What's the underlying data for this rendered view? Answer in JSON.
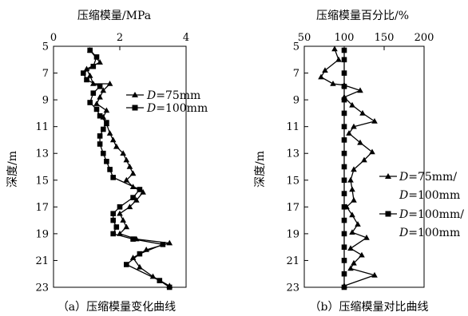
{
  "chart_data": [
    {
      "type": "line",
      "title": "",
      "xlabel": "压缩模量/MPa",
      "ylabel": "深度/m",
      "caption": "（a）压缩模量变化曲线",
      "xlim": [
        0,
        4
      ],
      "ylim": [
        5,
        23
      ],
      "y_inverted": true,
      "x_axis_position": "top",
      "xticks": [
        "0",
        "2",
        "4"
      ],
      "yticks": [
        "5",
        "7",
        "9",
        "11",
        "13",
        "15",
        "17",
        "19",
        "21",
        "23"
      ],
      "legend_position": "right",
      "series": [
        {
          "name": "D=75mm",
          "legend_prefix": "D",
          "legend_suffix": "=75mm",
          "marker": "triangle",
          "points": [
            [
              1.1,
              5.3
            ],
            [
              1.4,
              6.2
            ],
            [
              1.0,
              6.7
            ],
            [
              1.1,
              7.2
            ],
            [
              1.2,
              7.8
            ],
            [
              1.7,
              7.8
            ],
            [
              1.5,
              8.3
            ],
            [
              1.4,
              8.8
            ],
            [
              1.3,
              9.3
            ],
            [
              1.6,
              9.8
            ],
            [
              1.5,
              10.3
            ],
            [
              1.6,
              10.8
            ],
            [
              1.7,
              11.5
            ],
            [
              1.8,
              12.0
            ],
            [
              1.9,
              12.5
            ],
            [
              2.1,
              13.0
            ],
            [
              2.2,
              13.5
            ],
            [
              2.3,
              14.0
            ],
            [
              2.4,
              14.5
            ],
            [
              2.2,
              15.0
            ],
            [
              2.4,
              15.5
            ],
            [
              2.7,
              15.9
            ],
            [
              2.5,
              16.5
            ],
            [
              2.3,
              17.0
            ],
            [
              2.0,
              17.5
            ],
            [
              2.1,
              18.0
            ],
            [
              2.2,
              18.5
            ],
            [
              2.0,
              19.0
            ],
            [
              2.5,
              19.4
            ],
            [
              3.5,
              19.7
            ],
            [
              2.8,
              20.2
            ],
            [
              2.4,
              20.8
            ],
            [
              2.6,
              21.5
            ],
            [
              3.0,
              22.2
            ],
            [
              3.5,
              22.9
            ]
          ]
        },
        {
          "name": "D=100mm",
          "legend_prefix": "D",
          "legend_suffix": "=100mm",
          "marker": "square",
          "points": [
            [
              1.1,
              5.3
            ],
            [
              1.3,
              5.8
            ],
            [
              1.2,
              6.5
            ],
            [
              0.9,
              7.0
            ],
            [
              1.0,
              7.5
            ],
            [
              1.4,
              8.0
            ],
            [
              1.2,
              8.5
            ],
            [
              1.1,
              9.2
            ],
            [
              1.3,
              9.7
            ],
            [
              1.4,
              10.2
            ],
            [
              1.6,
              10.7
            ],
            [
              1.5,
              11.2
            ],
            [
              1.4,
              11.7
            ],
            [
              1.4,
              12.3
            ],
            [
              1.5,
              13.0
            ],
            [
              1.6,
              13.6
            ],
            [
              1.7,
              14.2
            ],
            [
              1.8,
              14.8
            ],
            [
              2.6,
              15.7
            ],
            [
              2.4,
              16.3
            ],
            [
              2.0,
              17.0
            ],
            [
              1.8,
              17.5
            ],
            [
              1.8,
              18.0
            ],
            [
              1.9,
              18.5
            ],
            [
              1.8,
              19.0
            ],
            [
              2.4,
              19.4
            ],
            [
              3.3,
              19.8
            ],
            [
              2.6,
              20.5
            ],
            [
              2.2,
              21.3
            ],
            [
              3.2,
              22.5
            ],
            [
              3.5,
              23.0
            ]
          ]
        }
      ]
    },
    {
      "type": "line",
      "title": "",
      "xlabel": "压缩模量百分比/%",
      "ylabel": "深度/m",
      "caption": "（b）压缩模量对比曲线",
      "xlim": [
        50,
        200
      ],
      "ylim": [
        5,
        23
      ],
      "y_inverted": true,
      "x_axis_position": "top",
      "xticks": [
        "50",
        "100",
        "150",
        "200"
      ],
      "yticks": [
        "5",
        "7",
        "9",
        "11",
        "13",
        "15",
        "17",
        "19",
        "21",
        "23"
      ],
      "legend_position": "right",
      "series": [
        {
          "name": "D=75mm/D=100mm",
          "legend_line1": "D=75mm/",
          "legend_line2": "D=100mm",
          "marker": "triangle",
          "points": [
            [
              88,
              5.2
            ],
            [
              93,
              6.0
            ],
            [
              76,
              6.8
            ],
            [
              71,
              7.3
            ],
            [
              86,
              7.8
            ],
            [
              100,
              7.9
            ],
            [
              120,
              8.3
            ],
            [
              100,
              8.8
            ],
            [
              110,
              9.4
            ],
            [
              123,
              10.0
            ],
            [
              138,
              10.6
            ],
            [
              112,
              11.0
            ],
            [
              106,
              11.5
            ],
            [
              120,
              12.2
            ],
            [
              135,
              12.9
            ],
            [
              125,
              13.5
            ],
            [
              112,
              14.2
            ],
            [
              108,
              15.0
            ],
            [
              110,
              15.7
            ],
            [
              112,
              16.5
            ],
            [
              103,
              17.0
            ],
            [
              110,
              17.6
            ],
            [
              117,
              18.3
            ],
            [
              110,
              18.9
            ],
            [
              128,
              19.3
            ],
            [
              108,
              20.1
            ],
            [
              122,
              20.6
            ],
            [
              112,
              21.2
            ],
            [
              108,
              21.6
            ],
            [
              138,
              22.1
            ],
            [
              100,
              22.9
            ]
          ]
        },
        {
          "name": "D=100mm/D=100mm",
          "legend_line1": "D=100mm/",
          "legend_line2": "D=100mm",
          "marker": "square",
          "points": [
            [
              100,
              5.3
            ],
            [
              100,
              6.0
            ],
            [
              100,
              7.0
            ],
            [
              100,
              8.0
            ],
            [
              100,
              9.0
            ],
            [
              100,
              10.0
            ],
            [
              100,
              11.0
            ],
            [
              100,
              12.0
            ],
            [
              100,
              13.0
            ],
            [
              100,
              14.0
            ],
            [
              100,
              15.0
            ],
            [
              100,
              16.0
            ],
            [
              100,
              17.0
            ],
            [
              100,
              18.0
            ],
            [
              100,
              19.0
            ],
            [
              100,
              20.0
            ],
            [
              100,
              21.0
            ],
            [
              100,
              22.0
            ],
            [
              100,
              23.0
            ]
          ]
        }
      ]
    }
  ]
}
